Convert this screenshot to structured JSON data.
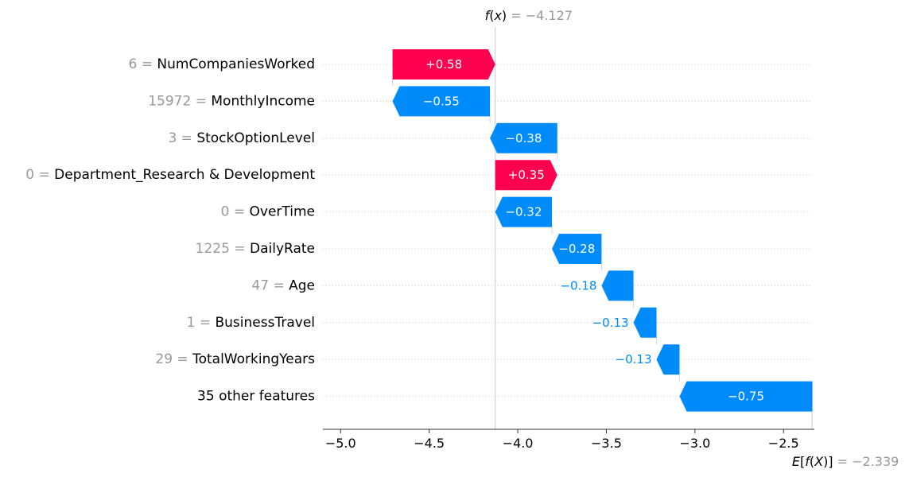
{
  "chart_data": {
    "type": "waterfall",
    "fx": {
      "label": "f(x)",
      "value_text": "−4.127",
      "value": -4.127
    },
    "base": {
      "label": "E[f(X)]",
      "value_text": "−2.339",
      "value": -2.339
    },
    "features": [
      {
        "value": "6",
        "name": "NumCompaniesWorked",
        "contribution": 0.58,
        "label": "+0.58"
      },
      {
        "value": "15972",
        "name": "MonthlyIncome",
        "contribution": -0.55,
        "label": "−0.55"
      },
      {
        "value": "3",
        "name": "StockOptionLevel",
        "contribution": -0.38,
        "label": "−0.38"
      },
      {
        "value": "0",
        "name": "Department_Research & Development",
        "contribution": 0.35,
        "label": "+0.35"
      },
      {
        "value": "0",
        "name": "OverTime",
        "contribution": -0.32,
        "label": "−0.32"
      },
      {
        "value": "1225",
        "name": "DailyRate",
        "contribution": -0.28,
        "label": "−0.28"
      },
      {
        "value": "47",
        "name": "Age",
        "contribution": -0.18,
        "label": "−0.18"
      },
      {
        "value": "1",
        "name": "BusinessTravel",
        "contribution": -0.13,
        "label": "−0.13"
      },
      {
        "value": "29",
        "name": "TotalWorkingYears",
        "contribution": -0.13,
        "label": "−0.13"
      },
      {
        "value": "",
        "name": "35 other features",
        "contribution": -0.75,
        "label": "−0.75"
      }
    ],
    "xticks": [
      {
        "value": -5.0,
        "label": "−5.0"
      },
      {
        "value": -4.5,
        "label": "−4.5"
      },
      {
        "value": -4.0,
        "label": "−4.0"
      },
      {
        "value": -3.5,
        "label": "−3.5"
      },
      {
        "value": -3.0,
        "label": "−3.0"
      },
      {
        "value": -2.5,
        "label": "−2.5"
      }
    ],
    "xlim": [
      -5.1,
      -2.335
    ],
    "colors": {
      "positive": "#ff0051",
      "negative": "#008bfb",
      "muted": "#999999",
      "grid": "#cccccc"
    }
  }
}
